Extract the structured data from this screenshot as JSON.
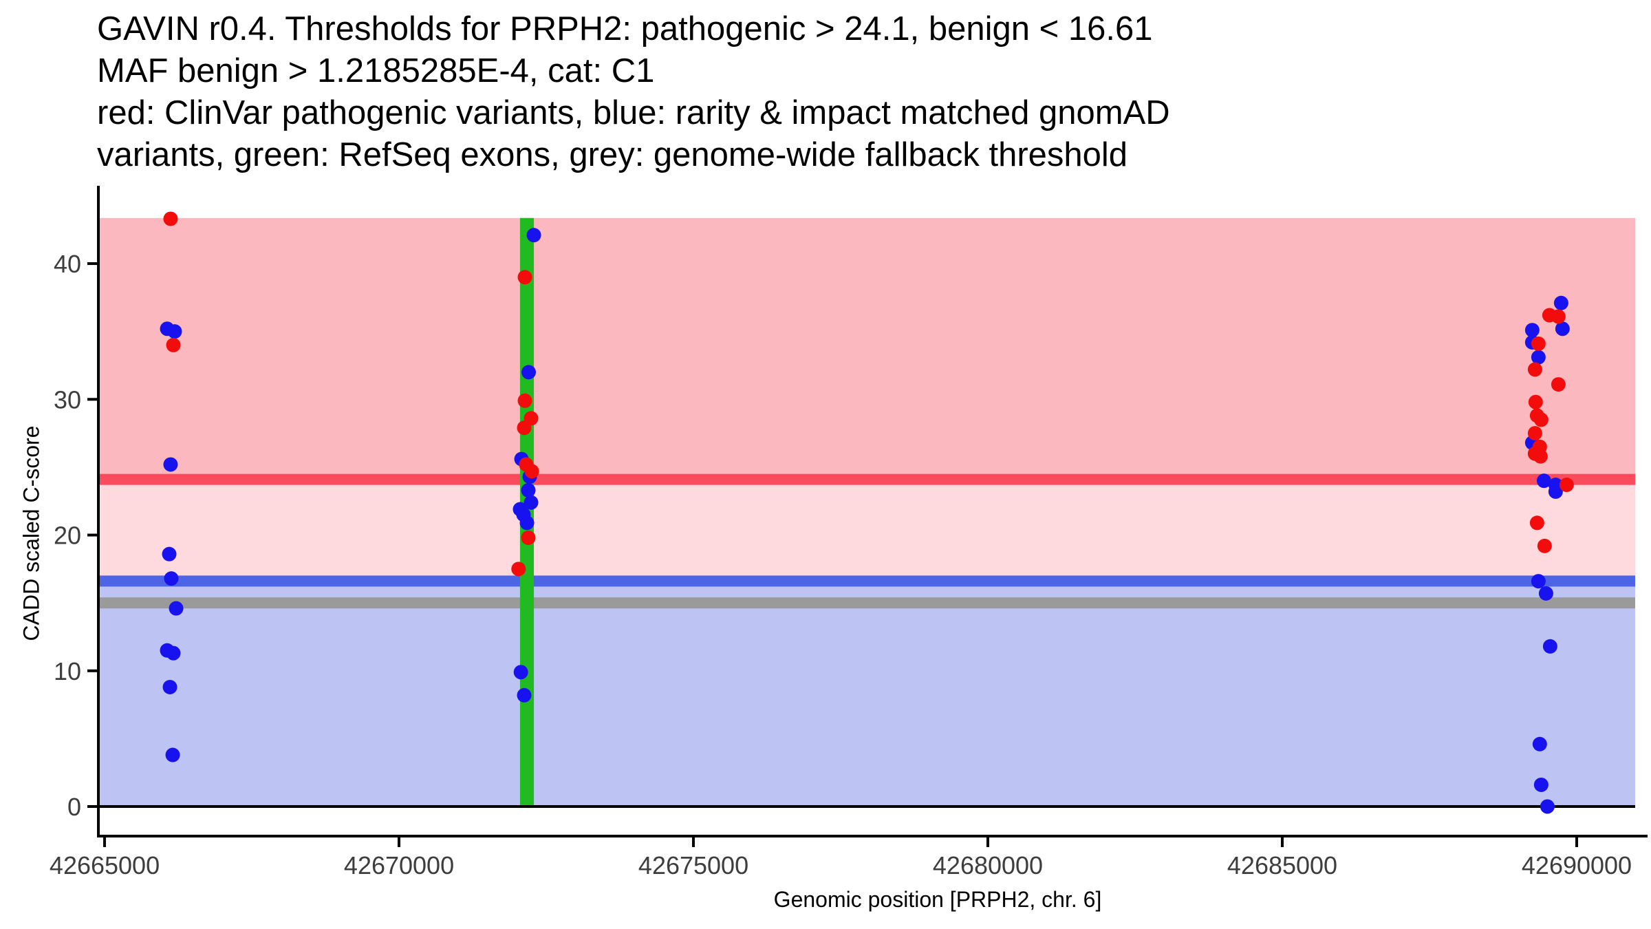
{
  "title": {
    "lines": [
      "GAVIN r0.4. Thresholds for PRPH2: pathogenic > 24.1, benign < 16.61",
      "MAF benign > 1.2185285E-4, cat: C1",
      "red: ClinVar pathogenic variants, blue: rarity & impact matched gnomAD",
      "variants, green: RefSeq exons, grey: genome-wide fallback threshold"
    ]
  },
  "chart_data": {
    "type": "scatter",
    "xlabel": "Genomic position [PRPH2, chr. 6]",
    "ylabel": "CADD scaled C-score",
    "xlim": [
      42664918,
      42690993
    ],
    "ylim": [
      -2.18,
      45.53
    ],
    "x_ticks": [
      42665000,
      42670000,
      42675000,
      42680000,
      42685000,
      42690000
    ],
    "y_ticks": [
      0,
      10,
      20,
      30,
      40
    ],
    "grid": false,
    "legend_position": "none",
    "thresholds": {
      "pathogenic": 24.1,
      "benign": 16.61,
      "genome_wide_fallback": 15.0,
      "maf_benign": "1.2185285E-4",
      "category": "C1"
    },
    "bands": [
      {
        "name": "pathogenic-region",
        "ymin": 24.1,
        "ymax": 43.36,
        "color": "#FBB8BE"
      },
      {
        "name": "intermediate-region",
        "ymin": 16.61,
        "ymax": 24.1,
        "color": "#FED9DD"
      },
      {
        "name": "benign-region",
        "ymin": 0,
        "ymax": 16.61,
        "color": "#BDC3F2"
      }
    ],
    "hlines": [
      {
        "name": "pathogenic-threshold",
        "y": 24.1,
        "color": "#FA4B5C"
      },
      {
        "name": "benign-threshold",
        "y": 16.61,
        "color": "#4D64E6"
      },
      {
        "name": "genome-wide-fallback-threshold",
        "y": 15.0,
        "color": "#9A9A9A"
      }
    ],
    "exons": [
      {
        "name": "refseq-exon",
        "xmin": 42672055,
        "xmax": 42672290,
        "ymin": 0,
        "ymax": 43.36,
        "color": "#21BB21"
      }
    ],
    "baseline": {
      "y": 0,
      "color": "#000000"
    },
    "series": [
      {
        "name": "gnomad-matched-variants",
        "color": "#1813EE",
        "points": [
          [
            42666063,
            35.2
          ],
          [
            42666191,
            35.0
          ],
          [
            42666121,
            25.2
          ],
          [
            42666098,
            18.6
          ],
          [
            42666133,
            16.8
          ],
          [
            42666215,
            14.6
          ],
          [
            42666063,
            11.5
          ],
          [
            42666168,
            11.3
          ],
          [
            42666110,
            8.8
          ],
          [
            42666157,
            3.8
          ],
          [
            42672290,
            42.1
          ],
          [
            42672202,
            32.0
          ],
          [
            42672080,
            25.6
          ],
          [
            42672220,
            24.3
          ],
          [
            42672196,
            23.3
          ],
          [
            42672243,
            22.4
          ],
          [
            42672056,
            21.9
          ],
          [
            42672115,
            21.5
          ],
          [
            42672173,
            20.9
          ],
          [
            42672070,
            9.9
          ],
          [
            42672126,
            8.2
          ],
          [
            42689736,
            37.1
          ],
          [
            42689759,
            35.2
          ],
          [
            42689245,
            35.1
          ],
          [
            42689245,
            34.2
          ],
          [
            42689350,
            33.1
          ],
          [
            42689245,
            26.8
          ],
          [
            42689444,
            24.0
          ],
          [
            42689642,
            23.7
          ],
          [
            42689642,
            23.2
          ],
          [
            42689350,
            16.6
          ],
          [
            42689479,
            15.7
          ],
          [
            42689549,
            11.8
          ],
          [
            42689373,
            4.6
          ],
          [
            42689397,
            1.6
          ],
          [
            42689502,
            0.0
          ]
        ]
      },
      {
        "name": "clinvar-pathogenic-variants",
        "color": "#F30C0C",
        "points": [
          [
            42666121,
            43.3
          ],
          [
            42666168,
            34.0
          ],
          [
            42672138,
            39.0
          ],
          [
            42672138,
            29.9
          ],
          [
            42672243,
            28.6
          ],
          [
            42672126,
            27.9
          ],
          [
            42672160,
            25.2
          ],
          [
            42672255,
            24.7
          ],
          [
            42672196,
            19.8
          ],
          [
            42672030,
            17.5
          ],
          [
            42689537,
            36.2
          ],
          [
            42689689,
            36.1
          ],
          [
            42689350,
            34.1
          ],
          [
            42689292,
            32.2
          ],
          [
            42689689,
            31.1
          ],
          [
            42689303,
            29.8
          ],
          [
            42689327,
            28.8
          ],
          [
            42689397,
            28.5
          ],
          [
            42689292,
            27.5
          ],
          [
            42689373,
            26.5
          ],
          [
            42689292,
            26.0
          ],
          [
            42689385,
            25.8
          ],
          [
            42689829,
            23.7
          ],
          [
            42689327,
            20.9
          ],
          [
            42689455,
            19.2
          ]
        ]
      }
    ]
  },
  "colors": {
    "background": "#FFFFFF",
    "axis": "#000000",
    "tick_label": "#3D3D3D",
    "point_red": "#F30C0C",
    "point_blue": "#1813EE",
    "exon_green": "#21BB21",
    "line_red": "#FA4B5C",
    "line_blue": "#4D64E6",
    "line_grey": "#9A9A9A"
  }
}
